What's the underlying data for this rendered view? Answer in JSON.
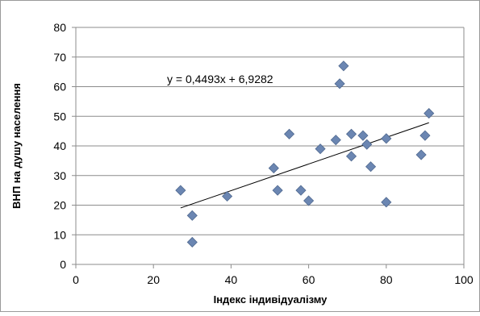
{
  "chart_data": {
    "type": "scatter",
    "xlabel": "Індекс індивідуалізму",
    "ylabel": "ВНП на душу населення",
    "xlim": [
      0,
      100
    ],
    "ylim": [
      0,
      80
    ],
    "x_ticks": [
      "0",
      "20",
      "40",
      "60",
      "80",
      "100"
    ],
    "y_ticks": [
      "0",
      "10",
      "20",
      "30",
      "40",
      "50",
      "60",
      "70",
      "80"
    ],
    "grid": "horizontal",
    "legend": "none",
    "marker_color": "#6B86B2",
    "trendline": {
      "equation": "y = 0,4493x  + 6,9282",
      "slope": 0.4493,
      "intercept": 6.9282,
      "x_range": [
        27,
        91
      ]
    },
    "points": [
      {
        "x": 27,
        "y": 25
      },
      {
        "x": 30,
        "y": 16.5
      },
      {
        "x": 30,
        "y": 7.5
      },
      {
        "x": 39,
        "y": 23
      },
      {
        "x": 51,
        "y": 32.5
      },
      {
        "x": 52,
        "y": 25
      },
      {
        "x": 55,
        "y": 44
      },
      {
        "x": 58,
        "y": 25
      },
      {
        "x": 60,
        "y": 21.5
      },
      {
        "x": 63,
        "y": 39
      },
      {
        "x": 67,
        "y": 42
      },
      {
        "x": 68,
        "y": 61
      },
      {
        "x": 69,
        "y": 67
      },
      {
        "x": 71,
        "y": 44
      },
      {
        "x": 71,
        "y": 36.5
      },
      {
        "x": 74,
        "y": 43.5
      },
      {
        "x": 75,
        "y": 40.5
      },
      {
        "x": 76,
        "y": 33
      },
      {
        "x": 80,
        "y": 42.5
      },
      {
        "x": 80,
        "y": 21
      },
      {
        "x": 89,
        "y": 37
      },
      {
        "x": 90,
        "y": 43.5
      },
      {
        "x": 91,
        "y": 51
      }
    ]
  }
}
